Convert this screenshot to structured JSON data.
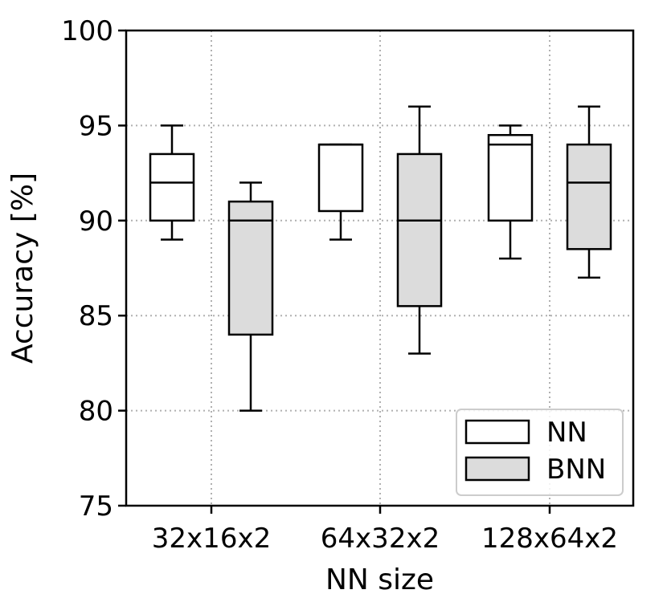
{
  "chart_data": {
    "type": "box",
    "xlabel": "NN size",
    "ylabel": "Accuracy [%]",
    "ylim": [
      75,
      100
    ],
    "yticks": [
      75,
      80,
      85,
      90,
      95,
      100
    ],
    "categories": [
      "32x16x2",
      "64x32x2",
      "128x64x2"
    ],
    "grid": true,
    "legend": "bottom-right",
    "series": [
      {
        "name": "NN",
        "color": "#ffffff",
        "boxes": [
          {
            "whislo": 89,
            "q1": 90,
            "med": 92,
            "q3": 93.5,
            "whishi": 95
          },
          {
            "whislo": 89,
            "q1": 90.5,
            "med": 94,
            "q3": 94,
            "whishi": 94
          },
          {
            "whislo": 88,
            "q1": 90,
            "med": 94,
            "q3": 94.5,
            "whishi": 95
          }
        ]
      },
      {
        "name": "BNN",
        "color": "#dcdcdc",
        "boxes": [
          {
            "whislo": 80,
            "q1": 84,
            "med": 90,
            "q3": 91,
            "whishi": 92
          },
          {
            "whislo": 83,
            "q1": 85.5,
            "med": 90,
            "q3": 93.5,
            "whishi": 96
          },
          {
            "whislo": 87,
            "q1": 88.5,
            "med": 92,
            "q3": 94,
            "whishi": 96
          }
        ]
      }
    ]
  }
}
